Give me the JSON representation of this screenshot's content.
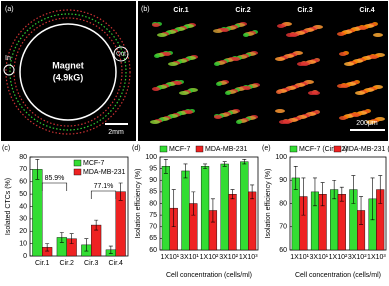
{
  "panel_a": {
    "label": "(a)",
    "inlet": "In",
    "outlet": "Out",
    "magnet": "Magnet",
    "field": "(4.9kG)",
    "scale": "2mm"
  },
  "panel_b": {
    "label": "(b)",
    "columns": [
      "Cir.1",
      "Cir.2",
      "Cir.3",
      "Cir.4"
    ],
    "scale": "200μm"
  },
  "chart_data": [
    {
      "type": "bar",
      "title": "(c)",
      "y_label": "Isolated CTCs (%)",
      "categories": [
        "Cir.1",
        "Cir.2",
        "Cir.3",
        "Cir.4"
      ],
      "series": [
        {
          "name": "MCF-7",
          "color": "#33dd33",
          "values": [
            70,
            15,
            9,
            5
          ],
          "errors": [
            8,
            4,
            5,
            3
          ]
        },
        {
          "name": "MDA-MB-231",
          "color": "#ee2222",
          "values": [
            7,
            14,
            25,
            52
          ],
          "errors": [
            3,
            4,
            4,
            7
          ]
        }
      ],
      "annotations": [
        "85.9%",
        "77.1%"
      ],
      "ylim": [
        0,
        80
      ],
      "yticks": [
        0,
        10,
        20,
        30,
        40,
        50,
        60,
        70,
        80
      ],
      "legend": "upper right"
    },
    {
      "type": "bar",
      "title": "(d)",
      "y_label": "Isolation efficiency (%)",
      "x_label": "Cell concentration (cells/ml)",
      "categories": [
        "1X10¹",
        "3X10¹",
        "1X10²",
        "3X10²",
        "1X10³"
      ],
      "series": [
        {
          "name": "MCF-7",
          "color": "#33dd33",
          "values": [
            96,
            94,
            96,
            97,
            98
          ],
          "errors": [
            3,
            3,
            1,
            1,
            1
          ]
        },
        {
          "name": "MDA-MB-231",
          "color": "#ee2222",
          "values": [
            78,
            80,
            77,
            84,
            85
          ],
          "errors": [
            8,
            5,
            5,
            2,
            3
          ]
        }
      ],
      "ylim": [
        60,
        100
      ],
      "yticks": [
        60,
        65,
        70,
        75,
        80,
        85,
        90,
        95,
        100
      ],
      "legend": "top"
    },
    {
      "type": "bar",
      "title": "(e)",
      "y_label": "Isolation efficiency (%)",
      "x_label": "Cell concentration (cells/ml)",
      "categories": [
        "1X10¹",
        "3X10¹",
        "1X10²",
        "3X10²",
        "1X10³"
      ],
      "series": [
        {
          "name": "MCF-7 (Cir.1-2)",
          "color": "#33dd33",
          "values": [
            91,
            85,
            86,
            86,
            82
          ],
          "errors": [
            5,
            6,
            4,
            6,
            9
          ]
        },
        {
          "name": "MDA-MB-231 (Cir.3-4)",
          "color": "#ee2222",
          "values": [
            83,
            84,
            84,
            77,
            86
          ],
          "errors": [
            8,
            5,
            3,
            6,
            6
          ]
        }
      ],
      "ylim": [
        60,
        100
      ],
      "yticks": [
        60,
        70,
        80,
        90,
        100
      ],
      "legend": "top"
    }
  ]
}
